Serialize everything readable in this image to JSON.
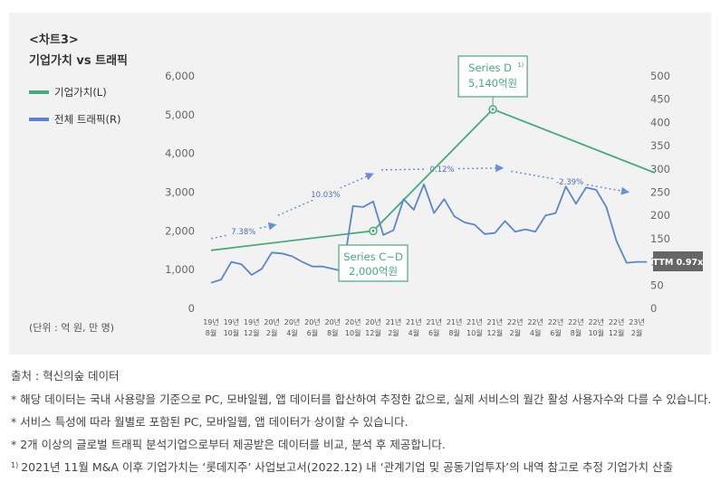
{
  "header": {
    "chart_id": "<차트3>",
    "title": "기업가치 vs 트래픽"
  },
  "unit_note": "(단위 : 억 원, 만 명)",
  "colors": {
    "valuation": "#4aaa7b",
    "traffic": "#5b86cc",
    "dotted": "#6a8fd6",
    "badge": "#666666",
    "panel": "#f2f2f2"
  },
  "chart_data": {
    "type": "line",
    "title": "기업가치 vs 트래픽",
    "categories": [
      [
        "19년",
        "8월"
      ],
      [
        "19년",
        "10월"
      ],
      [
        "19년",
        "12월"
      ],
      [
        "20년",
        "2월"
      ],
      [
        "20년",
        "4월"
      ],
      [
        "20년",
        "6월"
      ],
      [
        "20년",
        "8월"
      ],
      [
        "20년",
        "10월"
      ],
      [
        "20년",
        "12월"
      ],
      [
        "21년",
        "2월"
      ],
      [
        "21년",
        "4월"
      ],
      [
        "21년",
        "6월"
      ],
      [
        "21년",
        "8월"
      ],
      [
        "21년",
        "10월"
      ],
      [
        "21년",
        "12월"
      ],
      [
        "22년",
        "2월"
      ],
      [
        "22년",
        "4월"
      ],
      [
        "22년",
        "6월"
      ],
      [
        "22년",
        "8월"
      ],
      [
        "22년",
        "10월"
      ],
      [
        "22년",
        "12월"
      ],
      [
        "23년",
        "2월"
      ]
    ],
    "y_left": {
      "ticks": [
        "6,000",
        "5,000",
        "4,000",
        "3,000",
        "2,000",
        "1,000",
        "0"
      ],
      "range": [
        0,
        6000
      ]
    },
    "y_right": {
      "ticks": [
        "500",
        "450",
        "400",
        "350",
        "300",
        "250",
        "200",
        "150",
        "100",
        "50",
        "0"
      ],
      "range": [
        0,
        500
      ]
    },
    "series": [
      {
        "name": "기업가치(L)",
        "axis": "left",
        "x": [
          0,
          8,
          13.9,
          21.9
        ],
        "values": [
          1500,
          2000,
          5140,
          3500
        ]
      },
      {
        "name": "전체 트래픽(R)",
        "axis": "right",
        "x": [
          0,
          0.5,
          1,
          1.5,
          2,
          2.5,
          3,
          3.5,
          4,
          4.5,
          5,
          5.5,
          6,
          6.5,
          7,
          7.5,
          8,
          8.5,
          9,
          9.5,
          10,
          10.5,
          11,
          11.5,
          12,
          12.5,
          13,
          13.5,
          14,
          14.5,
          15,
          15.5,
          16,
          16.5,
          17,
          17.5,
          18,
          18.5,
          19,
          19.5,
          20,
          20.5,
          21,
          21.5
        ],
        "values": [
          55,
          62,
          100,
          95,
          72,
          85,
          120,
          118,
          112,
          100,
          90,
          90,
          85,
          80,
          220,
          218,
          230,
          158,
          168,
          235,
          212,
          267,
          205,
          235,
          198,
          185,
          180,
          160,
          162,
          188,
          165,
          170,
          165,
          200,
          205,
          262,
          225,
          260,
          255,
          218,
          145,
          98,
          100,
          100
        ]
      }
    ],
    "point_annotations": [
      {
        "series": "기업가치(L)",
        "x": 8,
        "value": 2000,
        "label": "Series C~D",
        "amount": "2,000억원"
      },
      {
        "series": "기업가치(L)",
        "x": 13.9,
        "value": 5140,
        "label": "Series D",
        "footnote": "1)",
        "amount": "5,140억원"
      }
    ],
    "growth_annotations": [
      {
        "label": "7.38%",
        "from": [
          0,
          150
        ],
        "to": [
          3.2,
          180
        ]
      },
      {
        "label": "10.03%",
        "from": [
          3.3,
          200
        ],
        "to": [
          8,
          290
        ]
      },
      {
        "label": "0.12%",
        "from": [
          8.4,
          298
        ],
        "to": [
          14.4,
          302
        ]
      },
      {
        "label": "-2.39%",
        "from": [
          14.8,
          295
        ],
        "to": [
          20.6,
          250
        ]
      }
    ],
    "ttm_badge": "TTM 0.97x"
  },
  "notes": {
    "source": "출처 : 혁신의숲 데이터",
    "lines": [
      "* 해당 데이터는 국내 사용량을 기준으로 PC, 모바일웹, 앱 데이터를 합산하여 추정한 값으로, 실제 서비스의 월간 활성 사용자수와 다를 수 있습니다.",
      "* 서비스 특성에 따라 월별로 포함된 PC, 모바일웹, 앱 데이터가 상이할 수 있습니다.",
      "* 2개 이상의 글로벌 트래픽 분석기업으로부터 제공받은 데이터를 비교, 분석 후 제공합니다."
    ],
    "footnote_mark": "1)",
    "footnote": "2021년 11월 M&A 이후 기업가치는 ‘롯데지주’ 사업보고서(2022.12) 내 ‘관계기업 및 공동기업투자’의 내역 참고로 추정 기업가치 산출"
  }
}
